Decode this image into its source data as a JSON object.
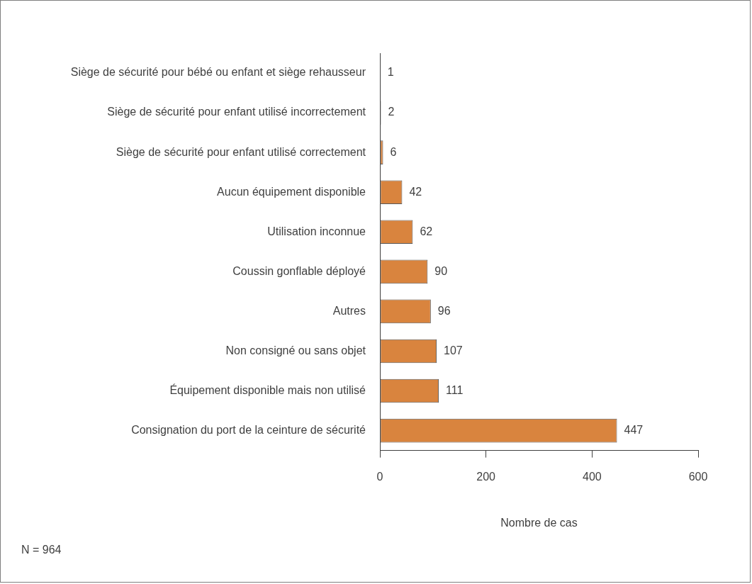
{
  "chart_data": {
    "type": "bar",
    "orientation": "horizontal",
    "xlabel": "Nombre de cas",
    "categories": [
      "Siège de sécurité pour bébé ou enfant et siège rehausseur",
      "Siège de sécurité pour enfant utilisé incorrectement",
      "Siège de sécurité pour enfant utilisé correctement",
      "Aucun équipement disponible",
      "Utilisation inconnue",
      "Coussin gonflable déployé",
      "Autres",
      "Non consigné ou sans objet",
      "Équipement disponible mais non utilisé",
      "Consignation du port de la ceinture de sécurité"
    ],
    "values": [
      1,
      2,
      6,
      42,
      62,
      90,
      96,
      107,
      111,
      447
    ],
    "colors": [
      "#595959",
      "#595959",
      "#d9843e",
      "#d9843e",
      "#d9843e",
      "#d9843e",
      "#d9843e",
      "#d9843e",
      "#d9843e",
      "#d9843e"
    ],
    "xlim": [
      0,
      600
    ],
    "xticks": [
      0,
      200,
      400,
      600
    ],
    "data_labels": true,
    "grid": false,
    "legend": false,
    "annotations": [
      "N = 964"
    ]
  }
}
